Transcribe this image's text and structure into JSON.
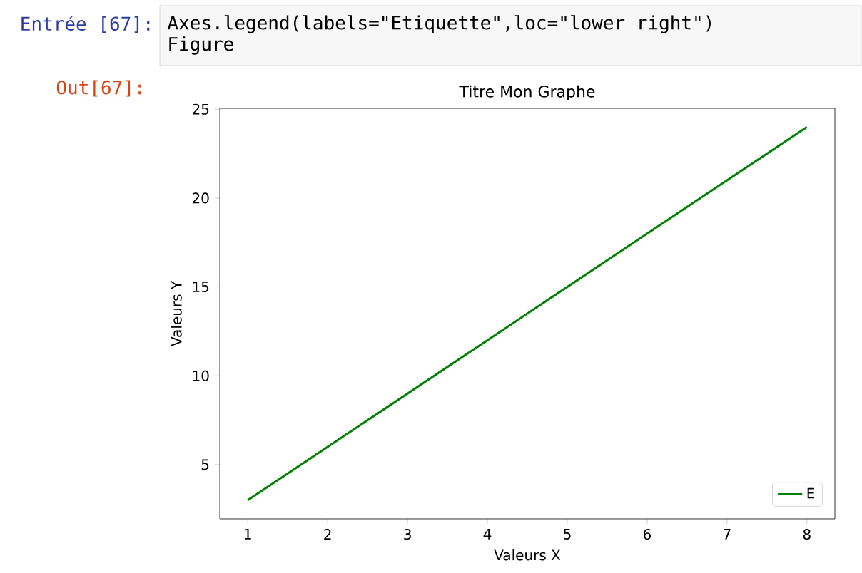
{
  "chart_data": {
    "type": "line",
    "title": "Titre Mon Graphe",
    "xlabel": "Valeurs X",
    "ylabel": "Valeurs Y",
    "x": [
      1,
      2,
      3,
      4,
      5,
      6,
      7,
      8
    ],
    "series": [
      {
        "name": "E",
        "color": "#008000",
        "values": [
          3,
          6,
          9,
          12,
          15,
          18,
          21,
          24
        ]
      }
    ],
    "xlim": [
      0.65,
      8.35
    ],
    "ylim": [
      1.95,
      25.05
    ],
    "xticks": [
      1,
      2,
      3,
      4,
      5,
      6,
      7,
      8
    ],
    "yticks": [
      5,
      10,
      15,
      20,
      25
    ],
    "legend": "bottom right",
    "annotations": [
      "Entrée [67]:",
      "Axes.legend(labels=\"Etiquette\",loc=\"lower right\")",
      "Figure",
      "Out[67]:"
    ]
  }
}
